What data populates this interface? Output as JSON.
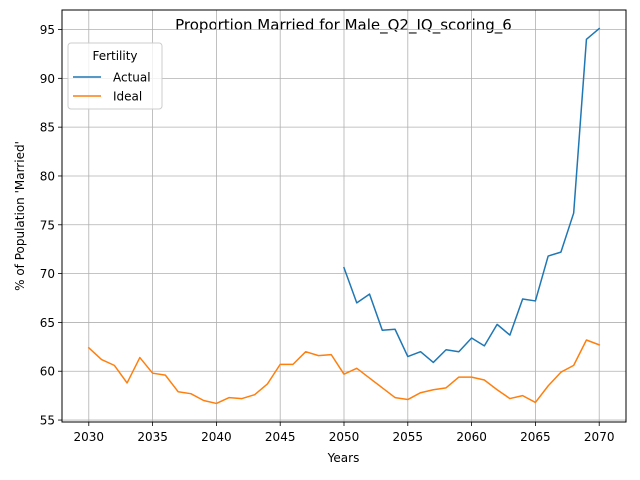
{
  "chart_data": {
    "type": "line",
    "title": "Proportion Married for Male_Q2_IQ_scoring_6",
    "xlabel": "Years",
    "ylabel": "% of Population 'Married'",
    "xlim": [
      2027.9,
      2072.1
    ],
    "ylim": [
      54.8,
      97.0
    ],
    "xticks": [
      2030,
      2035,
      2040,
      2045,
      2050,
      2055,
      2060,
      2065,
      2070
    ],
    "yticks": [
      55,
      60,
      65,
      70,
      75,
      80,
      85,
      90,
      95
    ],
    "grid": true,
    "legend": {
      "title": "Fertility",
      "placement": "top-left"
    },
    "series": [
      {
        "name": "Actual",
        "color": "#1f77b4",
        "x": [
          2050,
          2051,
          2052,
          2053,
          2054,
          2055,
          2056,
          2057,
          2058,
          2059,
          2060,
          2061,
          2062,
          2063,
          2064,
          2065,
          2066,
          2067,
          2068,
          2069,
          2070
        ],
        "values": [
          70.6,
          67.0,
          67.9,
          64.2,
          64.3,
          61.5,
          62.0,
          60.9,
          62.2,
          62.0,
          63.4,
          62.6,
          64.8,
          63.7,
          67.4,
          67.2,
          71.8,
          72.2,
          76.2,
          94.0,
          95.1
        ]
      },
      {
        "name": "Ideal",
        "color": "#ff7f0e",
        "x": [
          2030,
          2031,
          2032,
          2033,
          2034,
          2035,
          2036,
          2037,
          2038,
          2039,
          2040,
          2041,
          2042,
          2043,
          2044,
          2045,
          2046,
          2047,
          2048,
          2049,
          2050,
          2051,
          2052,
          2053,
          2054,
          2055,
          2056,
          2057,
          2058,
          2059,
          2060,
          2061,
          2062,
          2063,
          2064,
          2065,
          2066,
          2067,
          2068,
          2069,
          2070
        ],
        "values": [
          62.4,
          61.2,
          60.6,
          58.8,
          61.4,
          59.8,
          59.6,
          57.9,
          57.7,
          57.0,
          56.7,
          57.3,
          57.2,
          57.6,
          58.7,
          60.7,
          60.7,
          62.0,
          61.6,
          61.7,
          59.7,
          60.3,
          59.3,
          58.3,
          57.3,
          57.1,
          57.8,
          58.1,
          58.3,
          59.4,
          59.4,
          59.1,
          58.1,
          57.2,
          57.5,
          56.8,
          58.5,
          59.9,
          60.6,
          63.2,
          62.7
        ]
      }
    ]
  }
}
